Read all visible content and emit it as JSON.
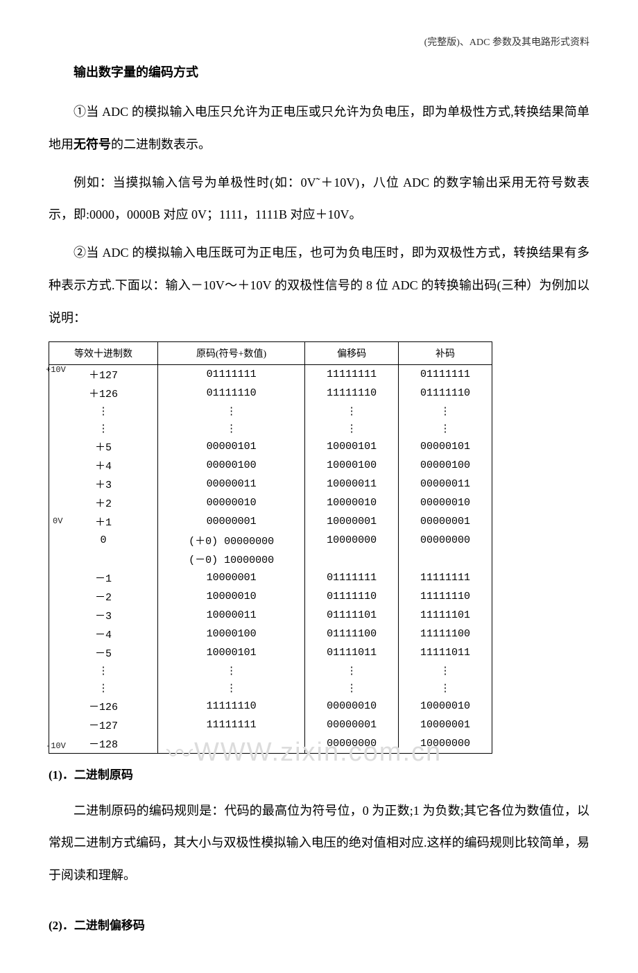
{
  "header": {
    "note": "(完整版)、ADC 参数及其电路形式资料"
  },
  "section": {
    "title": "输出数字量的编码方式",
    "p1_a": "①当 ADC 的模拟输入电压只允许为正电压或只允许为负电压，即为单极性方式,转换结果简单地用",
    "p1_bold": "无符号",
    "p1_b": "的二进制数表示。",
    "p2": "例如：当摸拟输入信号为单极性时(如：0V˜＋10V)，八位 ADC 的数字输出采用无符号数表示，即:0000，0000B 对应 0V；1111，1111B 对应＋10V。",
    "p3": "②当 ADC 的模拟输入电压既可为正电压，也可为负电压时，即为双极性方式，转换结果有多种表示方式.下面以：输入－10V～＋10V 的双极性信号的 8 位 ADC 的转换输出码(三种）为例加以说明："
  },
  "table": {
    "headers": [
      "等效十进制数",
      "原码(符号+数值)",
      "偏移码",
      "补码"
    ],
    "volt_top": "+10V",
    "volt_zero": "0V",
    "volt_bottom": "-10V",
    "rows": [
      {
        "dec": "＋127",
        "orig": "01111111",
        "off": "11111111",
        "comp": "01111111"
      },
      {
        "dec": "＋126",
        "orig": "01111110",
        "off": "11111110",
        "comp": "01111110"
      },
      {
        "dec": "⋮",
        "orig": "⋮",
        "off": "⋮",
        "comp": "⋮"
      },
      {
        "dec": "⋮",
        "orig": "⋮",
        "off": "⋮",
        "comp": "⋮"
      },
      {
        "dec": "＋5",
        "orig": "00000101",
        "off": "10000101",
        "comp": "00000101"
      },
      {
        "dec": "＋4",
        "orig": "00000100",
        "off": "10000100",
        "comp": "00000100"
      },
      {
        "dec": "＋3",
        "orig": "00000011",
        "off": "10000011",
        "comp": "00000011"
      },
      {
        "dec": "＋2",
        "orig": "00000010",
        "off": "10000010",
        "comp": "00000010"
      },
      {
        "dec": "＋1",
        "orig": "00000001",
        "off": "10000001",
        "comp": "00000001"
      },
      {
        "dec": "0",
        "orig": "(＋0) 00000000",
        "off": "10000000",
        "comp": "00000000"
      },
      {
        "dec": "",
        "orig": "(－0) 10000000",
        "off": "",
        "comp": ""
      },
      {
        "dec": "－1",
        "orig": "10000001",
        "off": "01111111",
        "comp": "11111111"
      },
      {
        "dec": "－2",
        "orig": "10000010",
        "off": "01111110",
        "comp": "11111110"
      },
      {
        "dec": "－3",
        "orig": "10000011",
        "off": "01111101",
        "comp": "11111101"
      },
      {
        "dec": "－4",
        "orig": "10000100",
        "off": "01111100",
        "comp": "11111100"
      },
      {
        "dec": "－5",
        "orig": "10000101",
        "off": "01111011",
        "comp": "11111011"
      },
      {
        "dec": "⋮",
        "orig": "⋮",
        "off": "⋮",
        "comp": "⋮"
      },
      {
        "dec": "⋮",
        "orig": "⋮",
        "off": "⋮",
        "comp": "⋮"
      },
      {
        "dec": "－126",
        "orig": "11111110",
        "off": "00000010",
        "comp": "10000010"
      },
      {
        "dec": "－127",
        "orig": "11111111",
        "off": "00000001",
        "comp": "10000001"
      },
      {
        "dec": "－128",
        "orig": "",
        "off": "00000000",
        "comp": "10000000"
      }
    ]
  },
  "sub1": {
    "heading": "(1)．二进制原码",
    "para": "二进制原码的编码规则是：代码的最高位为符号位，0 为正数;1 为负数;其它各位为数值位，以常规二进制方式编码，其大小与双极性模拟输入电压的绝对值相对应.这样的编码规则比较简单，易于阅读和理解。"
  },
  "sub2": {
    "heading": "(2)．二进制偏移码"
  },
  "watermark": {
    "text": "WWW.zixin.com.cn"
  }
}
